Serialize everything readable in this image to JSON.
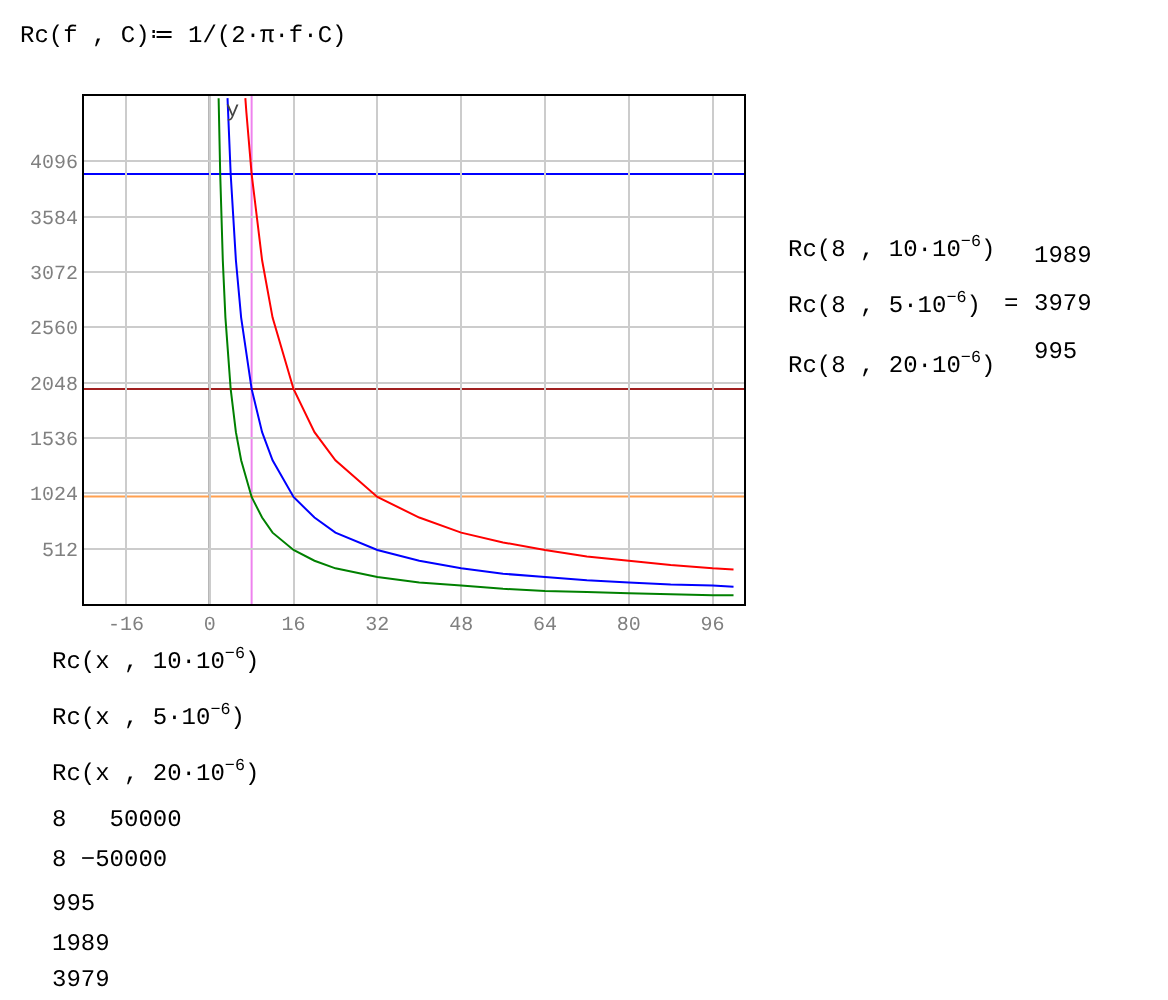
{
  "chart_data": {
    "type": "line",
    "ylabel": "y",
    "xlim": [
      -24,
      102
    ],
    "xticks": [
      -16,
      0,
      16,
      32,
      48,
      64,
      80,
      96
    ],
    "ylim": [
      0,
      4700
    ],
    "yticks": [
      512,
      1024,
      1536,
      2048,
      2560,
      3072,
      3584,
      4096
    ],
    "grid": true,
    "marker": "none",
    "line_style": "solid",
    "series": [
      {
        "color": "#ff0000",
        "x": [
          6.8,
          7,
          8,
          10,
          12,
          16,
          20,
          24,
          32,
          40,
          48,
          56,
          64,
          72,
          80,
          88,
          96,
          100
        ],
        "values": [
          4680,
          4550,
          3980,
          3180,
          2650,
          1990,
          1590,
          1330,
          990,
          800,
          660,
          570,
          500,
          440,
          400,
          360,
          330,
          320
        ]
      },
      {
        "color": "#0000ff",
        "x": [
          3.4,
          4,
          5,
          6,
          8,
          10,
          12,
          16,
          20,
          24,
          32,
          40,
          48,
          56,
          64,
          72,
          80,
          88,
          96,
          100
        ],
        "values": [
          4680,
          3980,
          3180,
          2650,
          1990,
          1590,
          1330,
          990,
          800,
          660,
          500,
          400,
          330,
          280,
          250,
          220,
          200,
          180,
          170,
          160
        ]
      },
      {
        "color": "#008000",
        "x": [
          1.7,
          2,
          2.5,
          3,
          4,
          5,
          6,
          8,
          10,
          12,
          16,
          20,
          24,
          32,
          40,
          48,
          56,
          64,
          72,
          80,
          88,
          96,
          100
        ],
        "values": [
          4680,
          3980,
          3180,
          2650,
          1990,
          1590,
          1330,
          990,
          800,
          660,
          500,
          400,
          330,
          250,
          200,
          170,
          140,
          120,
          110,
          100,
          90,
          80,
          80
        ]
      }
    ],
    "ref_lines": [
      {
        "axis": "x",
        "value": 0,
        "color": "#000000"
      },
      {
        "axis": "x",
        "value": 8,
        "color": "#ee82ee"
      },
      {
        "axis": "y",
        "value": 995,
        "color": "#ffa050"
      },
      {
        "axis": "y",
        "value": 1989,
        "color": "#a02020"
      },
      {
        "axis": "y",
        "value": 3979,
        "color": "#0000ff"
      }
    ],
    "annotations": [
      "Rc(f , C)≔ 1/(2·π·f·C)",
      "Rc(8 , 10·10$^{−6}$)",
      "Rc(8 , 5·10$^{−6}$)",
      "Rc(8 , 20·10$^{−6}$)",
      "=",
      "1989",
      "3979",
      "995",
      "Rc(x , 10·10$^{−6}$)",
      "Rc(x , 5·10$^{−6}$)",
      "Rc(x , 20·10$^{−6}$)",
      "8   50000",
      "8 −50000",
      "995",
      "1989",
      "3979"
    ]
  }
}
